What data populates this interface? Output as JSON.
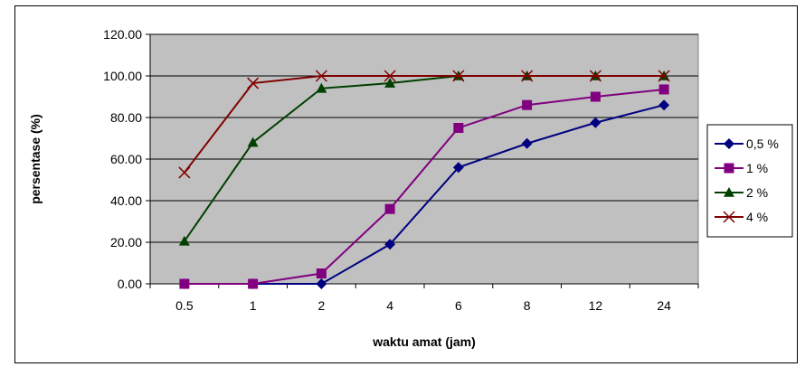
{
  "chart_data": {
    "type": "line",
    "title": "",
    "xlabel": "waktu amat (jam)",
    "ylabel": "persentase (%)",
    "categories": [
      "0.5",
      "1",
      "2",
      "4",
      "6",
      "8",
      "12",
      "24"
    ],
    "ylim": [
      0,
      120
    ],
    "y_ticks": [
      "0.00",
      "20.00",
      "40.00",
      "60.00",
      "80.00",
      "100.00",
      "120.00"
    ],
    "grid": true,
    "legend_position": "right",
    "plot_background": "#c0c0c0",
    "series": [
      {
        "name": "0,5 %",
        "color": "#000080",
        "marker": "diamond",
        "values": [
          0,
          0,
          0,
          19,
          56,
          67.5,
          77.5,
          86
        ]
      },
      {
        "name": "1 %",
        "color": "#800080",
        "marker": "square",
        "values": [
          0,
          0,
          5,
          36,
          75,
          86,
          90,
          93.5
        ]
      },
      {
        "name": "2 %",
        "color": "#004000",
        "marker": "triangle",
        "values": [
          20.5,
          68,
          94,
          96.5,
          100,
          100,
          100,
          100
        ]
      },
      {
        "name": "4 %",
        "color": "#800000",
        "marker": "x",
        "values": [
          53.5,
          96.5,
          100,
          100,
          100,
          100,
          100,
          100
        ]
      }
    ]
  }
}
